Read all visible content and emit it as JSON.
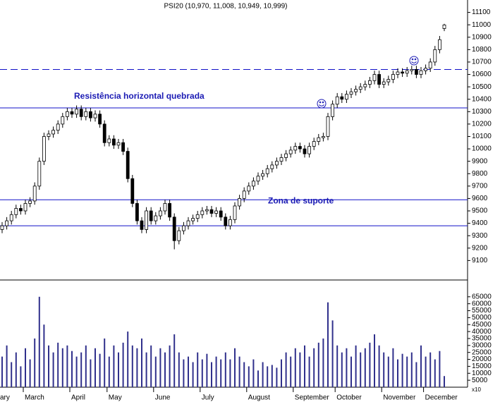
{
  "chart_data": {
    "type": "candlestick",
    "title": "PSI20 (10,970, 11,008, 10,949, 10,999)",
    "categories": [
      "ary",
      null,
      null,
      null,
      null,
      "March",
      null,
      null,
      null,
      null,
      null,
      null,
      null,
      null,
      null,
      "April",
      null,
      null,
      null,
      null,
      null,
      null,
      null,
      "May",
      null,
      null,
      null,
      null,
      null,
      null,
      null,
      null,
      null,
      "June",
      null,
      null,
      null,
      null,
      null,
      null,
      null,
      null,
      null,
      "July",
      null,
      null,
      null,
      null,
      null,
      null,
      null,
      null,
      null,
      "August",
      null,
      null,
      null,
      null,
      null,
      null,
      null,
      null,
      null,
      "September",
      null,
      null,
      null,
      null,
      null,
      null,
      null,
      null,
      "October",
      null,
      null,
      null,
      null,
      null,
      null,
      null,
      null,
      null,
      "November",
      null,
      null,
      null,
      null,
      null,
      null,
      null,
      null,
      "December",
      null,
      null,
      null,
      null
    ],
    "open": [
      9350,
      9380,
      9420,
      9470,
      9520,
      9500,
      9560,
      9580,
      9700,
      9900,
      10100,
      10120,
      10150,
      10200,
      10260,
      10300,
      10280,
      10320,
      10260,
      10300,
      10250,
      10280,
      10200,
      10050,
      10080,
      10030,
      10050,
      9980,
      9760,
      9560,
      9420,
      9350,
      9500,
      9420,
      9460,
      9500,
      9560,
      9450,
      9260,
      9340,
      9380,
      9420,
      9440,
      9470,
      9500,
      9510,
      9480,
      9500,
      9450,
      9380,
      9430,
      9540,
      9600,
      9660,
      9700,
      9740,
      9780,
      9800,
      9840,
      9870,
      9900,
      9930,
      9960,
      9990,
      10020,
      10000,
      9960,
      10020,
      10060,
      10090,
      10100,
      10260,
      10360,
      10420,
      10400,
      10440,
      10460,
      10480,
      10500,
      10520,
      10550,
      10600,
      10520,
      10540,
      10560,
      10600,
      10620,
      10610,
      10630,
      10640,
      10600,
      10630,
      10650,
      10700,
      10800,
      10970
    ],
    "high": [
      9410,
      9450,
      9500,
      9550,
      9550,
      9590,
      9610,
      9730,
      9930,
      10130,
      10150,
      10180,
      10230,
      10290,
      10330,
      10330,
      10350,
      10350,
      10330,
      10330,
      10310,
      10310,
      10230,
      10110,
      10110,
      10080,
      10080,
      10010,
      9790,
      9590,
      9450,
      9530,
      9530,
      9490,
      9530,
      9590,
      9590,
      9480,
      9370,
      9410,
      9450,
      9470,
      9500,
      9530,
      9540,
      9540,
      9530,
      9530,
      9480,
      9460,
      9570,
      9630,
      9690,
      9730,
      9770,
      9810,
      9830,
      9870,
      9900,
      9930,
      9960,
      9990,
      10020,
      10050,
      10050,
      10030,
      10050,
      10090,
      10120,
      10130,
      10290,
      10390,
      10450,
      10450,
      10470,
      10490,
      10510,
      10530,
      10550,
      10580,
      10630,
      10630,
      10570,
      10590,
      10630,
      10650,
      10650,
      10660,
      10670,
      10670,
      10660,
      10680,
      10730,
      10830,
      10910,
      11008
    ],
    "low": [
      9320,
      9350,
      9390,
      9440,
      9470,
      9470,
      9530,
      9550,
      9670,
      9870,
      10070,
      10090,
      10120,
      10170,
      10230,
      10250,
      10250,
      10230,
      10230,
      10220,
      10220,
      10170,
      10020,
      10020,
      10000,
      10000,
      9950,
      9730,
      9530,
      9390,
      9320,
      9320,
      9390,
      9390,
      9430,
      9470,
      9420,
      9190,
      9230,
      9310,
      9350,
      9390,
      9410,
      9440,
      9470,
      9450,
      9450,
      9420,
      9350,
      9350,
      9400,
      9510,
      9570,
      9630,
      9670,
      9710,
      9750,
      9770,
      9810,
      9840,
      9870,
      9900,
      9930,
      9960,
      9970,
      9930,
      9930,
      9990,
      10030,
      10060,
      10070,
      10230,
      10330,
      10370,
      10370,
      10410,
      10430,
      10450,
      10470,
      10490,
      10520,
      10490,
      10490,
      10510,
      10530,
      10570,
      10580,
      10580,
      10600,
      10570,
      10570,
      10600,
      10620,
      10670,
      10770,
      10949
    ],
    "close": [
      9380,
      9420,
      9470,
      9520,
      9500,
      9560,
      9580,
      9700,
      9900,
      10100,
      10120,
      10150,
      10200,
      10260,
      10300,
      10280,
      10320,
      10260,
      10300,
      10250,
      10280,
      10200,
      10050,
      10080,
      10030,
      10050,
      9980,
      9760,
      9560,
      9420,
      9350,
      9500,
      9420,
      9460,
      9500,
      9560,
      9450,
      9260,
      9340,
      9380,
      9420,
      9440,
      9470,
      9500,
      9510,
      9480,
      9500,
      9450,
      9380,
      9430,
      9540,
      9600,
      9660,
      9700,
      9740,
      9780,
      9800,
      9840,
      9870,
      9900,
      9930,
      9960,
      9990,
      10020,
      10000,
      9960,
      10020,
      10060,
      10090,
      10100,
      10260,
      10360,
      10420,
      10400,
      10440,
      10460,
      10480,
      10500,
      10520,
      10550,
      10600,
      10520,
      10540,
      10560,
      10600,
      10620,
      10610,
      10630,
      10640,
      10600,
      10630,
      10650,
      10700,
      10800,
      10880,
      10999
    ],
    "up_color": "#ffffff",
    "down_color": "#000000",
    "ylim": [
      8960,
      11200
    ],
    "yticks": [
      9100,
      9200,
      9300,
      9400,
      9500,
      9600,
      9700,
      9800,
      9900,
      10000,
      10100,
      10200,
      10300,
      10400,
      10500,
      10600,
      10700,
      10800,
      10900,
      11000,
      11100
    ],
    "hlines": [
      {
        "value": 10640,
        "dashed": true
      },
      {
        "value": 10330,
        "dashed": false
      },
      {
        "value": 9590,
        "dashed": false
      },
      {
        "value": 9380,
        "dashed": false
      }
    ],
    "hline_color": "#1010c8",
    "annotations": [
      "Resistência horizontal quebrada",
      "Zona de suporte"
    ],
    "volume": {
      "type": "bar",
      "color": "#30308c",
      "values": [
        22000,
        30000,
        18000,
        25000,
        15000,
        28000,
        20000,
        35000,
        65000,
        45000,
        30000,
        25000,
        32000,
        28000,
        30000,
        26000,
        22000,
        25000,
        30000,
        20000,
        28000,
        24000,
        35000,
        22000,
        30000,
        25000,
        32000,
        40000,
        30000,
        28000,
        35000,
        25000,
        30000,
        22000,
        28000,
        25000,
        30000,
        38000,
        25000,
        20000,
        22000,
        18000,
        25000,
        20000,
        24000,
        18000,
        22000,
        20000,
        25000,
        20000,
        28000,
        22000,
        18000,
        15000,
        20000,
        12000,
        18000,
        15000,
        16000,
        14000,
        20000,
        25000,
        22000,
        28000,
        25000,
        30000,
        22000,
        28000,
        32000,
        35000,
        61000,
        48000,
        30000,
        25000,
        28000,
        22000,
        30000,
        25000,
        28000,
        32000,
        38000,
        30000,
        25000,
        22000,
        28000,
        20000,
        24000,
        22000,
        25000,
        18000,
        30000,
        22000,
        25000,
        20000,
        26000,
        8000
      ],
      "ylim": [
        0,
        72000
      ],
      "yticks": [
        5000,
        10000,
        15000,
        20000,
        25000,
        30000,
        35000,
        40000,
        45000,
        50000,
        55000,
        60000,
        65000
      ],
      "multiplier": "x10"
    }
  }
}
